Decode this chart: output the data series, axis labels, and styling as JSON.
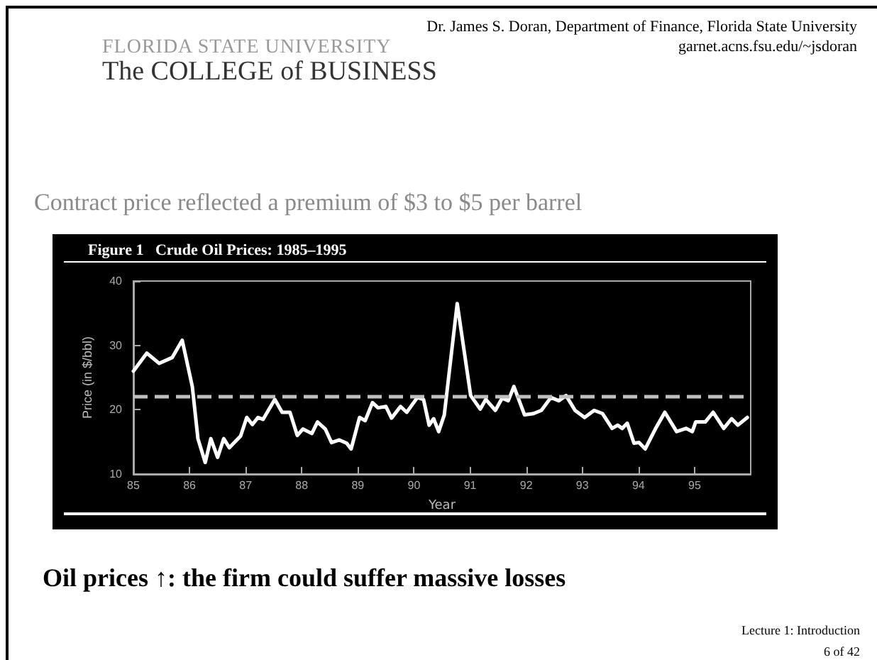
{
  "chart_data": {
    "type": "line",
    "title": "Figure 1   Crude Oil Prices: 1985–1995",
    "xlabel": "Year",
    "ylabel": "Price (in $/bbl)",
    "x": [
      85.0,
      85.24,
      85.46,
      85.69,
      85.87,
      86.05,
      86.15,
      86.28,
      86.38,
      86.5,
      86.61,
      86.71,
      86.91,
      87.02,
      87.12,
      87.22,
      87.31,
      87.52,
      87.65,
      87.79,
      87.92,
      88.02,
      88.18,
      88.28,
      88.42,
      88.53,
      88.67,
      88.8,
      88.88,
      89.03,
      89.13,
      89.26,
      89.36,
      89.5,
      89.6,
      89.76,
      89.87,
      90.06,
      90.17,
      90.27,
      90.35,
      90.44,
      90.54,
      90.77,
      91.01,
      91.18,
      91.28,
      91.45,
      91.57,
      91.68,
      91.78,
      91.97,
      92.13,
      92.27,
      92.44,
      92.58,
      92.71,
      92.87,
      93.04,
      93.21,
      93.36,
      93.53,
      93.63,
      93.71,
      93.8,
      93.92,
      94.01,
      94.12,
      94.3,
      94.47,
      94.68,
      94.85,
      94.96,
      95.02,
      95.19,
      95.33,
      95.52,
      95.66,
      95.77,
      95.94
    ],
    "series": [
      {
        "color": "#ffffff",
        "values": [
          26.0,
          28.8,
          27.2,
          28.1,
          30.8,
          23.6,
          15.5,
          11.8,
          15.5,
          12.6,
          15.5,
          14.1,
          15.9,
          18.8,
          17.7,
          18.8,
          18.5,
          21.6,
          19.6,
          19.6,
          16.0,
          17.0,
          16.3,
          18.1,
          17.0,
          14.9,
          15.3,
          14.8,
          13.9,
          18.8,
          18.3,
          21.1,
          20.3,
          20.5,
          18.7,
          20.5,
          19.6,
          21.9,
          21.6,
          17.6,
          18.6,
          16.6,
          19.2,
          36.5,
          22.2,
          20.1,
          21.6,
          19.9,
          21.8,
          21.4,
          23.6,
          19.2,
          19.4,
          19.9,
          21.9,
          21.4,
          22.2,
          19.9,
          18.8,
          19.9,
          19.4,
          17.1,
          17.6,
          17.1,
          17.9,
          14.8,
          14.9,
          13.9,
          17.0,
          19.6,
          16.6,
          17.1,
          16.6,
          18.1,
          18.1,
          19.6,
          17.1,
          18.6,
          17.6,
          18.8
        ]
      }
    ],
    "xlim": [
      85,
      96
    ],
    "xticks": [
      85,
      86,
      87,
      88,
      89,
      90,
      91,
      92,
      93,
      94,
      95
    ],
    "ylim": [
      10,
      40
    ],
    "yticks": [
      10,
      20,
      30,
      40
    ],
    "ref_lines": [
      {
        "axis": "y",
        "value": 22,
        "color": "#bfbfbf",
        "line_style": "dashed"
      }
    ],
    "grid": false,
    "marker": "none",
    "line_style": "solid",
    "annotations": [
      "Dr. James S. Doran, Department of Finance, Florida State University",
      "garnet.acns.fsu.edu/~jsdoran",
      "FLORIDA STATE UNIVERSITY",
      "The COLLEGE of BUSINESS",
      "Contract price reflected a premium of $3 to $5 per barrel",
      "Oil prices ↑: the firm could suffer massive losses",
      "Lecture 1: Introduction",
      "6 of 42"
    ]
  }
}
